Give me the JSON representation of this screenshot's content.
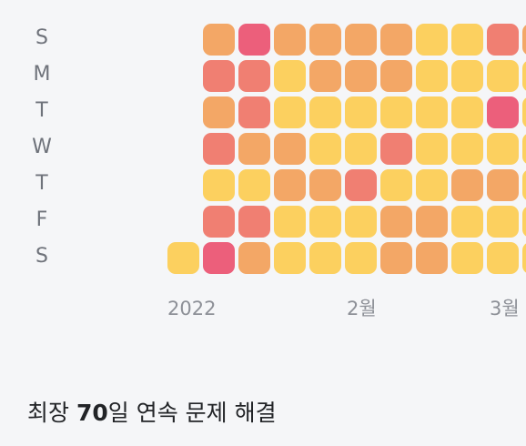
{
  "palette": {
    "y": "#fcd05f",
    "o": "#f3a766",
    "r": "#f07f72",
    "p": "#ec5f7b"
  },
  "weekdays": [
    "S",
    "M",
    "T",
    "W",
    "T",
    "F",
    "S"
  ],
  "months": [
    "2022",
    "2월",
    "3월"
  ],
  "grid_columns": [
    [
      null,
      null,
      null,
      null,
      null,
      null,
      "y"
    ],
    [
      "o",
      "r",
      "o",
      "r",
      "y",
      "r",
      "p"
    ],
    [
      "p",
      "r",
      "r",
      "o",
      "y",
      "r",
      "o"
    ],
    [
      "o",
      "y",
      "y",
      "o",
      "o",
      "y",
      "y"
    ],
    [
      "o",
      "o",
      "y",
      "y",
      "o",
      "y",
      "y"
    ],
    [
      "o",
      "o",
      "y",
      "y",
      "r",
      "y",
      "y"
    ],
    [
      "o",
      "o",
      "y",
      "r",
      "y",
      "o",
      "o"
    ],
    [
      "y",
      "y",
      "y",
      "y",
      "y",
      "o",
      "o"
    ],
    [
      "y",
      "y",
      "y",
      "y",
      "o",
      "y",
      "y"
    ],
    [
      "r",
      "y",
      "p",
      "y",
      "o",
      "y",
      "y"
    ],
    [
      "o",
      "y",
      "y",
      "y",
      "y",
      "y",
      "y"
    ]
  ],
  "streak": {
    "prefix": "최장 ",
    "days": "70",
    "suffix": "일 연속 문제 해결"
  }
}
